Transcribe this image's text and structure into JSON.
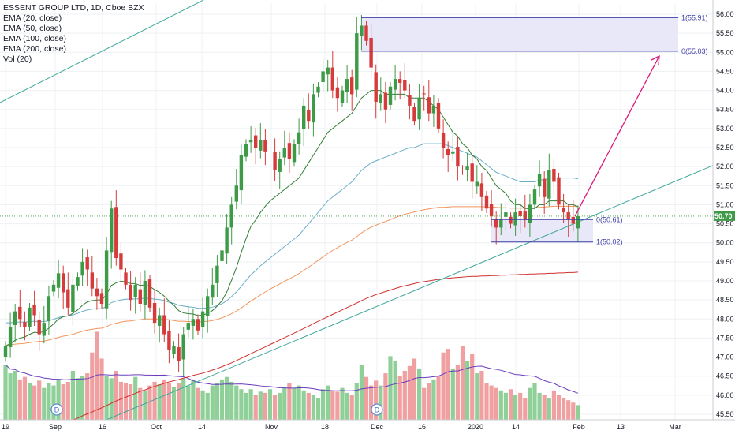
{
  "legend": {
    "title": "ESSENT GROUP LTD, 1D, Cboe BZX",
    "lines": [
      "EMA (20, close)",
      "EMA (50, close)",
      "EMA (100, close)",
      "EMA (200, close)",
      "Vol (20)"
    ]
  },
  "colors": {
    "up": "#3d9a46",
    "down": "#d63a3a",
    "vol_up": "#8fcf98",
    "vol_down": "#f0a0a0",
    "ema20": "#2f7d32",
    "ema50": "#6aaec8",
    "ema100": "#f0955c",
    "ema200": "#d0312d",
    "vol_ma": "#6a3dbf",
    "fib": "#3f3fa8",
    "fib_zone": "#e5e5f7",
    "trend": "#3fa79c",
    "arrow": "#e0157a",
    "price_label": "#3d9a46"
  },
  "chart_data": {
    "type": "candlestick",
    "title": "ESSENT GROUP LTD, 1D, Cboe BZX",
    "ylim": [
      45.4,
      56.2
    ],
    "y_ticks": [
      "56.00",
      "55.50",
      "55.00",
      "54.50",
      "54.00",
      "53.50",
      "53.00",
      "52.50",
      "52.00",
      "51.50",
      "51.00",
      "50.50",
      "50.00",
      "49.50",
      "49.00",
      "48.50",
      "48.00",
      "47.50",
      "47.00",
      "46.50",
      "46.00",
      "45.50"
    ],
    "x_labels": [
      {
        "label": "19",
        "date": "2019-08-19"
      },
      {
        "label": "Sep",
        "date": "2019-09-03"
      },
      {
        "label": "16",
        "date": "2019-09-16"
      },
      {
        "label": "Oct",
        "date": "2019-10-01"
      },
      {
        "label": "14",
        "date": "2019-10-14"
      },
      {
        "label": "Nov",
        "date": "2019-11-01"
      },
      {
        "label": "18",
        "date": "2019-11-18"
      },
      {
        "label": "Dec",
        "date": "2019-12-02"
      },
      {
        "label": "16",
        "date": "2019-12-16"
      },
      {
        "label": "2020",
        "date": "2020-01-02"
      },
      {
        "label": "14",
        "date": "2020-01-14"
      },
      {
        "label": "Feb",
        "date": "2020-02-03"
      },
      {
        "label": "13",
        "date": "2020-02-13"
      },
      {
        "label": "Mar",
        "date": "2020-03-02"
      }
    ],
    "last_price": "50.70",
    "closes": [
      47.3,
      47.8,
      48.2,
      48.0,
      47.8,
      48.3,
      48.1,
      47.6,
      47.9,
      48.6,
      48.9,
      49.2,
      48.7,
      48.3,
      48.9,
      49.1,
      49.5,
      49.3,
      48.8,
      48.6,
      48.4,
      49.8,
      50.9,
      49.6,
      49.3,
      48.9,
      48.5,
      48.9,
      48.4,
      49.0,
      48.3,
      47.9,
      48.1,
      47.6,
      47.2,
      47.3,
      46.9,
      47.6,
      47.9,
      48.0,
      47.7,
      48.2,
      48.6,
      48.9,
      49.4,
      49.8,
      50.4,
      51.0,
      51.5,
      52.3,
      52.6,
      52.7,
      52.5,
      52.7,
      52.4,
      52.5,
      51.9,
      52.2,
      52.5,
      52.2,
      52.6,
      52.9,
      53.6,
      53.2,
      53.9,
      54.1,
      54.5,
      54.6,
      54.0,
      53.8,
      54.0,
      54.3,
      53.9,
      55.5,
      55.7,
      55.3,
      54.6,
      53.7,
      53.9,
      53.5,
      54.1,
      54.3,
      54.2,
      54.0,
      53.6,
      53.2,
      53.8,
      53.9,
      53.4,
      53.6,
      53.0,
      52.5,
      52.3,
      52.4,
      52.0,
      51.9,
      52.0,
      51.6,
      51.6,
      51.2,
      50.9,
      50.7,
      50.4,
      50.6,
      50.8,
      50.5,
      50.8,
      50.7,
      50.6,
      51.0,
      51.4,
      51.8,
      51.2,
      51.9,
      51.6,
      51.0,
      50.8,
      50.6,
      50.5,
      50.7
    ],
    "volumes": [
      45,
      38,
      40,
      33,
      35,
      30,
      28,
      32,
      26,
      30,
      28,
      33,
      29,
      31,
      40,
      34,
      36,
      38,
      55,
      72,
      50,
      36,
      34,
      40,
      31,
      30,
      29,
      35,
      26,
      24,
      28,
      31,
      29,
      33,
      30,
      27,
      30,
      34,
      28,
      33,
      26,
      24,
      22,
      28,
      30,
      33,
      35,
      31,
      28,
      25,
      22,
      25,
      20,
      23,
      22,
      25,
      20,
      22,
      27,
      30,
      26,
      28,
      24,
      22,
      20,
      18,
      25,
      28,
      24,
      23,
      26,
      22,
      20,
      30,
      45,
      35,
      28,
      32,
      28,
      38,
      52,
      48,
      36,
      40,
      44,
      50,
      42,
      26,
      30,
      33,
      36,
      55,
      58,
      42,
      45,
      60,
      48,
      54,
      38,
      40,
      30,
      28,
      26,
      24,
      22,
      25,
      20,
      22,
      18,
      26,
      30,
      22,
      20,
      18,
      24,
      20,
      18,
      16,
      14,
      12
    ],
    "ema20": [
      47.3,
      47.35,
      47.44,
      47.5,
      47.53,
      47.6,
      47.65,
      47.64,
      47.67,
      47.76,
      47.87,
      48.0,
      48.06,
      48.08,
      48.15,
      48.24,
      48.36,
      48.45,
      48.48,
      48.5,
      48.5,
      48.64,
      48.88,
      48.95,
      48.99,
      48.98,
      48.93,
      48.93,
      48.88,
      48.9,
      48.85,
      48.77,
      48.7,
      48.6,
      48.47,
      48.36,
      48.22,
      48.16,
      48.14,
      48.13,
      48.09,
      48.1,
      48.15,
      48.22,
      48.34,
      48.48,
      48.71,
      49.02,
      49.35,
      49.75,
      50.11,
      50.43,
      50.6,
      50.8,
      50.96,
      51.1,
      51.2,
      51.3,
      51.4,
      51.5,
      51.6,
      51.7,
      51.9,
      52.1,
      52.3,
      52.5,
      52.7,
      52.9,
      53.0,
      53.1,
      53.2,
      53.3,
      53.4,
      53.6,
      53.8,
      53.9,
      54.0,
      54.0,
      54.0,
      53.9,
      53.9,
      53.9,
      53.9,
      53.9,
      53.8,
      53.8,
      53.8,
      53.8,
      53.7,
      53.6,
      53.5,
      53.3,
      53.1,
      52.9,
      52.8,
      52.6,
      52.5,
      52.3,
      52.2,
      52.0,
      51.9,
      51.7,
      51.5,
      51.4,
      51.3,
      51.1,
      51.0,
      51.0,
      50.9,
      50.9,
      50.9,
      51.0,
      51.0,
      51.1,
      51.1,
      51.1,
      51.1,
      51.0,
      51.0,
      50.95
    ],
    "ema50": [
      47.9,
      47.9,
      47.92,
      47.92,
      47.92,
      47.93,
      47.94,
      47.93,
      47.93,
      47.96,
      47.99,
      48.04,
      48.07,
      48.08,
      48.11,
      48.15,
      48.2,
      48.24,
      48.26,
      48.27,
      48.27,
      48.33,
      48.43,
      48.47,
      48.5,
      48.52,
      48.52,
      48.53,
      48.53,
      48.55,
      48.54,
      48.52,
      48.51,
      48.48,
      48.44,
      48.41,
      48.36,
      48.34,
      48.32,
      48.31,
      48.28,
      48.28,
      48.29,
      48.31,
      48.35,
      48.4,
      48.48,
      48.59,
      48.71,
      48.86,
      49.01,
      49.16,
      49.27,
      49.4,
      49.5,
      49.6,
      49.7,
      49.8,
      49.9,
      50.0,
      50.1,
      50.2,
      50.35,
      50.5,
      50.65,
      50.8,
      50.95,
      51.1,
      51.2,
      51.3,
      51.4,
      51.5,
      51.6,
      51.75,
      51.9,
      52.0,
      52.1,
      52.15,
      52.2,
      52.25,
      52.3,
      52.35,
      52.4,
      52.45,
      52.5,
      52.5,
      52.55,
      52.6,
      52.6,
      52.6,
      52.6,
      52.6,
      52.55,
      52.5,
      52.45,
      52.4,
      52.35,
      52.3,
      52.25,
      52.15,
      52.05,
      51.95,
      51.85,
      51.8,
      51.75,
      51.7,
      51.65,
      51.6,
      51.6,
      51.6,
      51.6,
      51.65,
      51.65,
      51.7,
      51.7,
      51.7,
      51.7,
      51.7,
      51.7,
      51.68
    ],
    "ema100": [
      47.3,
      47.32,
      47.34,
      47.35,
      47.36,
      47.38,
      47.4,
      47.41,
      47.42,
      47.45,
      47.48,
      47.52,
      47.55,
      47.57,
      47.6,
      47.64,
      47.68,
      47.71,
      47.73,
      47.75,
      47.76,
      47.8,
      47.86,
      47.89,
      47.92,
      47.94,
      47.95,
      47.97,
      47.98,
      48.0,
      48.0,
      48.0,
      48.0,
      47.99,
      47.98,
      47.96,
      47.94,
      47.94,
      47.93,
      47.93,
      47.92,
      47.93,
      47.94,
      47.96,
      47.99,
      48.03,
      48.08,
      48.14,
      48.21,
      48.29,
      48.38,
      48.47,
      48.55,
      48.63,
      48.71,
      48.79,
      48.85,
      48.92,
      48.99,
      49.05,
      49.12,
      49.19,
      49.28,
      49.36,
      49.45,
      49.54,
      49.63,
      49.72,
      49.8,
      49.87,
      49.94,
      50.01,
      50.07,
      50.16,
      50.26,
      50.34,
      50.41,
      50.46,
      50.52,
      50.56,
      50.61,
      50.66,
      50.71,
      50.75,
      50.78,
      50.81,
      50.84,
      50.87,
      50.89,
      50.91,
      50.93,
      50.93,
      50.94,
      50.95,
      50.95,
      50.95,
      50.95,
      50.95,
      50.95,
      50.95,
      50.94,
      50.94,
      50.93,
      50.92,
      50.92,
      50.91,
      50.91,
      50.91,
      50.91,
      50.91,
      50.92,
      50.93,
      50.94,
      50.95,
      50.96,
      50.96,
      50.96,
      50.96,
      50.96,
      50.95
    ],
    "ema200": [
      44.6,
      44.65,
      44.7,
      44.76,
      44.81,
      44.86,
      44.92,
      44.97,
      45.02,
      45.08,
      45.13,
      45.19,
      45.24,
      45.29,
      45.35,
      45.4,
      45.46,
      45.51,
      45.56,
      45.62,
      45.67,
      45.73,
      45.79,
      45.85,
      45.9,
      45.95,
      46.0,
      46.05,
      46.1,
      46.14,
      46.19,
      46.23,
      46.27,
      46.31,
      46.35,
      46.38,
      46.41,
      46.45,
      46.48,
      46.52,
      46.55,
      46.58,
      46.62,
      46.66,
      46.7,
      46.75,
      46.8,
      46.85,
      46.91,
      46.97,
      47.03,
      47.09,
      47.15,
      47.21,
      47.27,
      47.33,
      47.39,
      47.45,
      47.51,
      47.57,
      47.63,
      47.69,
      47.75,
      47.81,
      47.88,
      47.94,
      48.0,
      48.06,
      48.12,
      48.18,
      48.24,
      48.3,
      48.36,
      48.42,
      48.48,
      48.54,
      48.59,
      48.64,
      48.68,
      48.72,
      48.76,
      48.8,
      48.84,
      48.87,
      48.9,
      48.93,
      48.96,
      48.98,
      49.0,
      49.02,
      49.04,
      49.05,
      49.07,
      49.08,
      49.09,
      49.1,
      49.11,
      49.12,
      49.12,
      49.13,
      49.13,
      49.14,
      49.14,
      49.15,
      49.15,
      49.16,
      49.16,
      49.17,
      49.17,
      49.18,
      49.18,
      49.19,
      49.19,
      49.2,
      49.2,
      49.21,
      49.21,
      49.22,
      49.22,
      49.23
    ],
    "fib_upper": {
      "level1_value": 55.91,
      "level0_value": 55.03,
      "label1": "1(55.91)",
      "label0": "0(55.03)"
    },
    "fib_lower": {
      "level0_value": 50.61,
      "level1_value": 50.02,
      "label0": "0(50.61)",
      "label1": "1(50.02)"
    },
    "dividend_markers": [
      "D",
      "D"
    ]
  }
}
